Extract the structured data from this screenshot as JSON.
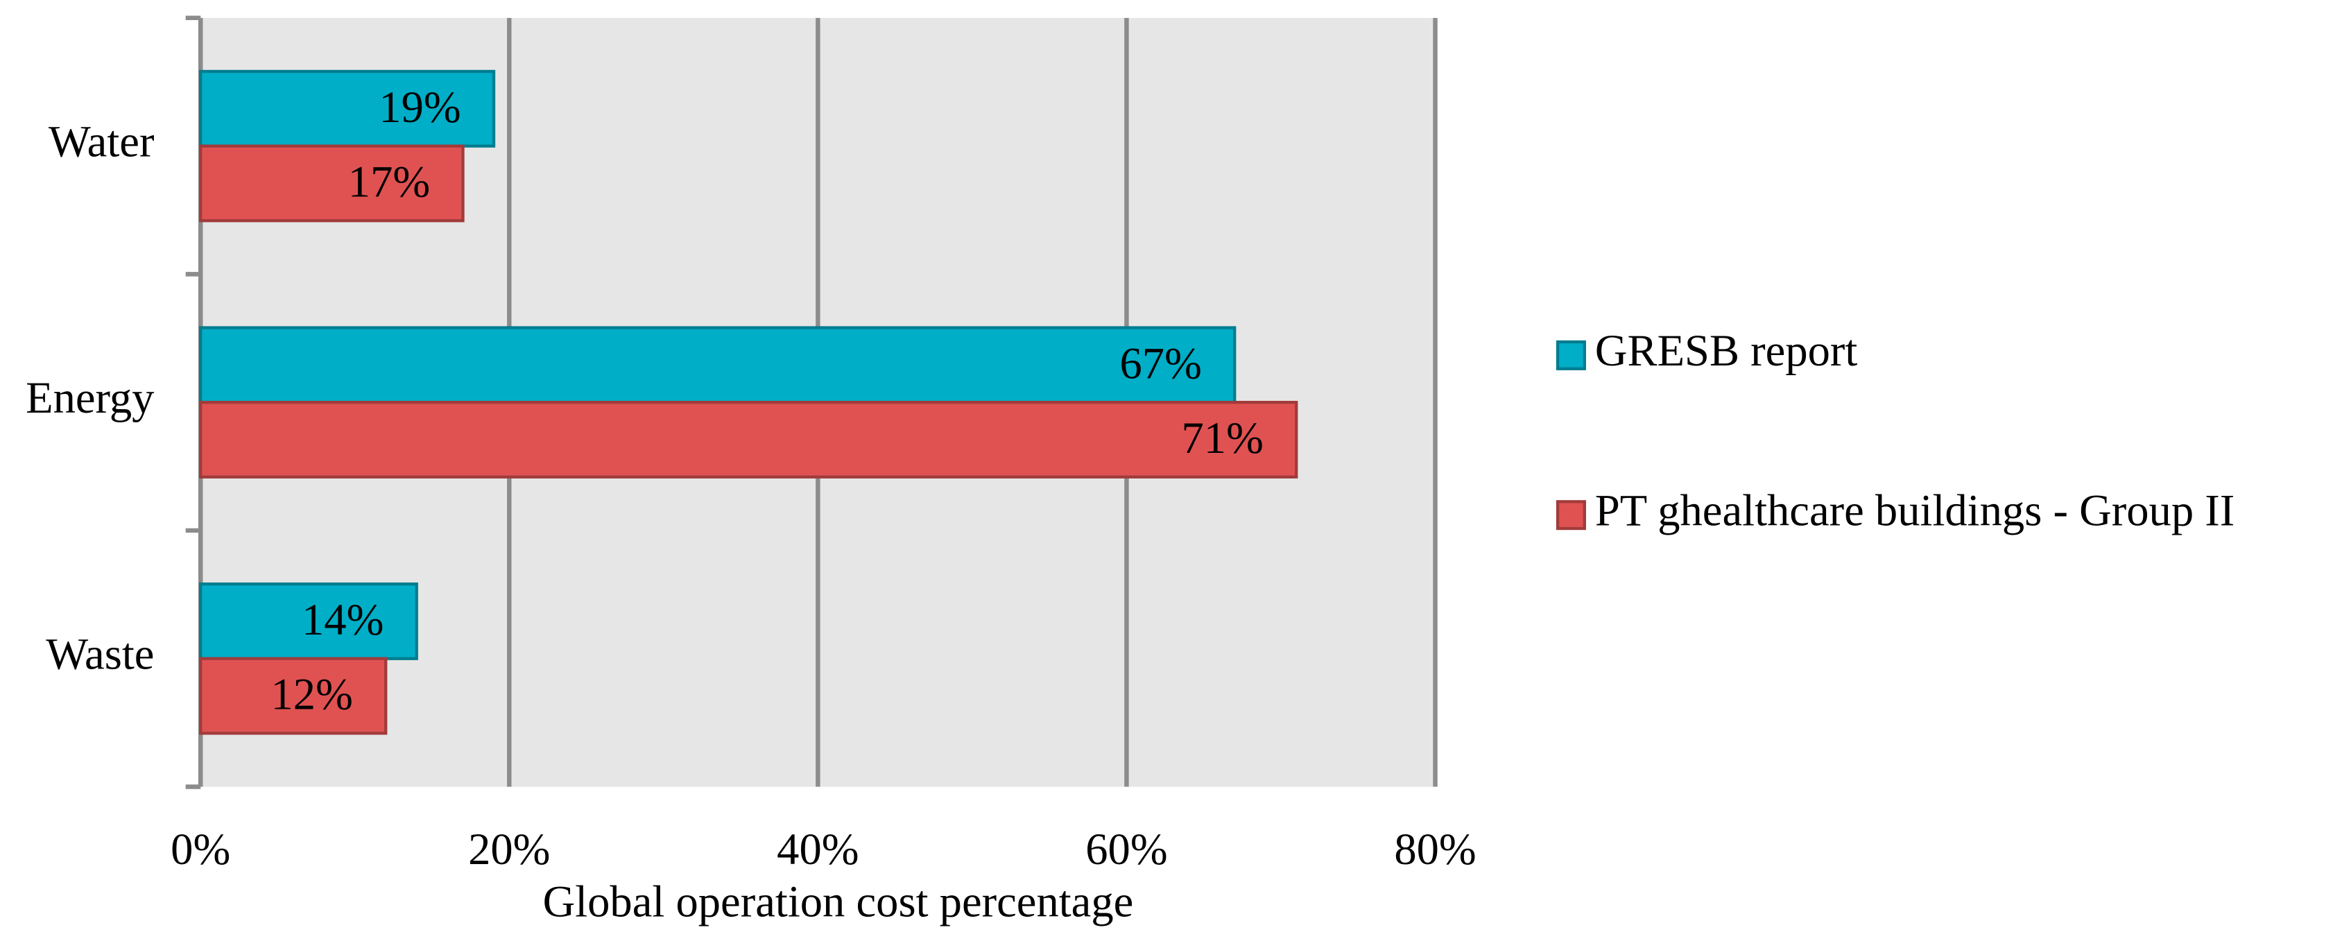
{
  "chart_data": {
    "type": "hbar",
    "x_label": "Global operation cost percentage",
    "categories": [
      "Water",
      "Energy",
      "Waste"
    ],
    "series": [
      {
        "name": "GRESB report",
        "color": "#00aec7",
        "values": [
          19,
          67,
          14
        ],
        "value_labels": [
          "19%",
          "67%",
          "14%"
        ]
      },
      {
        "name": "PT ghealthcare buildings - Group II",
        "color": "#e05252",
        "values": [
          17,
          71,
          12
        ],
        "value_labels": [
          "17%",
          "71%",
          "12%"
        ]
      }
    ],
    "xlim": [
      0,
      80
    ],
    "xticks": [
      {
        "value": 0,
        "label": "0%"
      },
      {
        "value": 20,
        "label": "20%"
      },
      {
        "value": 40,
        "label": "40%"
      },
      {
        "value": 60,
        "label": "60%"
      },
      {
        "value": 80,
        "label": "80%"
      }
    ],
    "grid": true,
    "legend": "right"
  }
}
